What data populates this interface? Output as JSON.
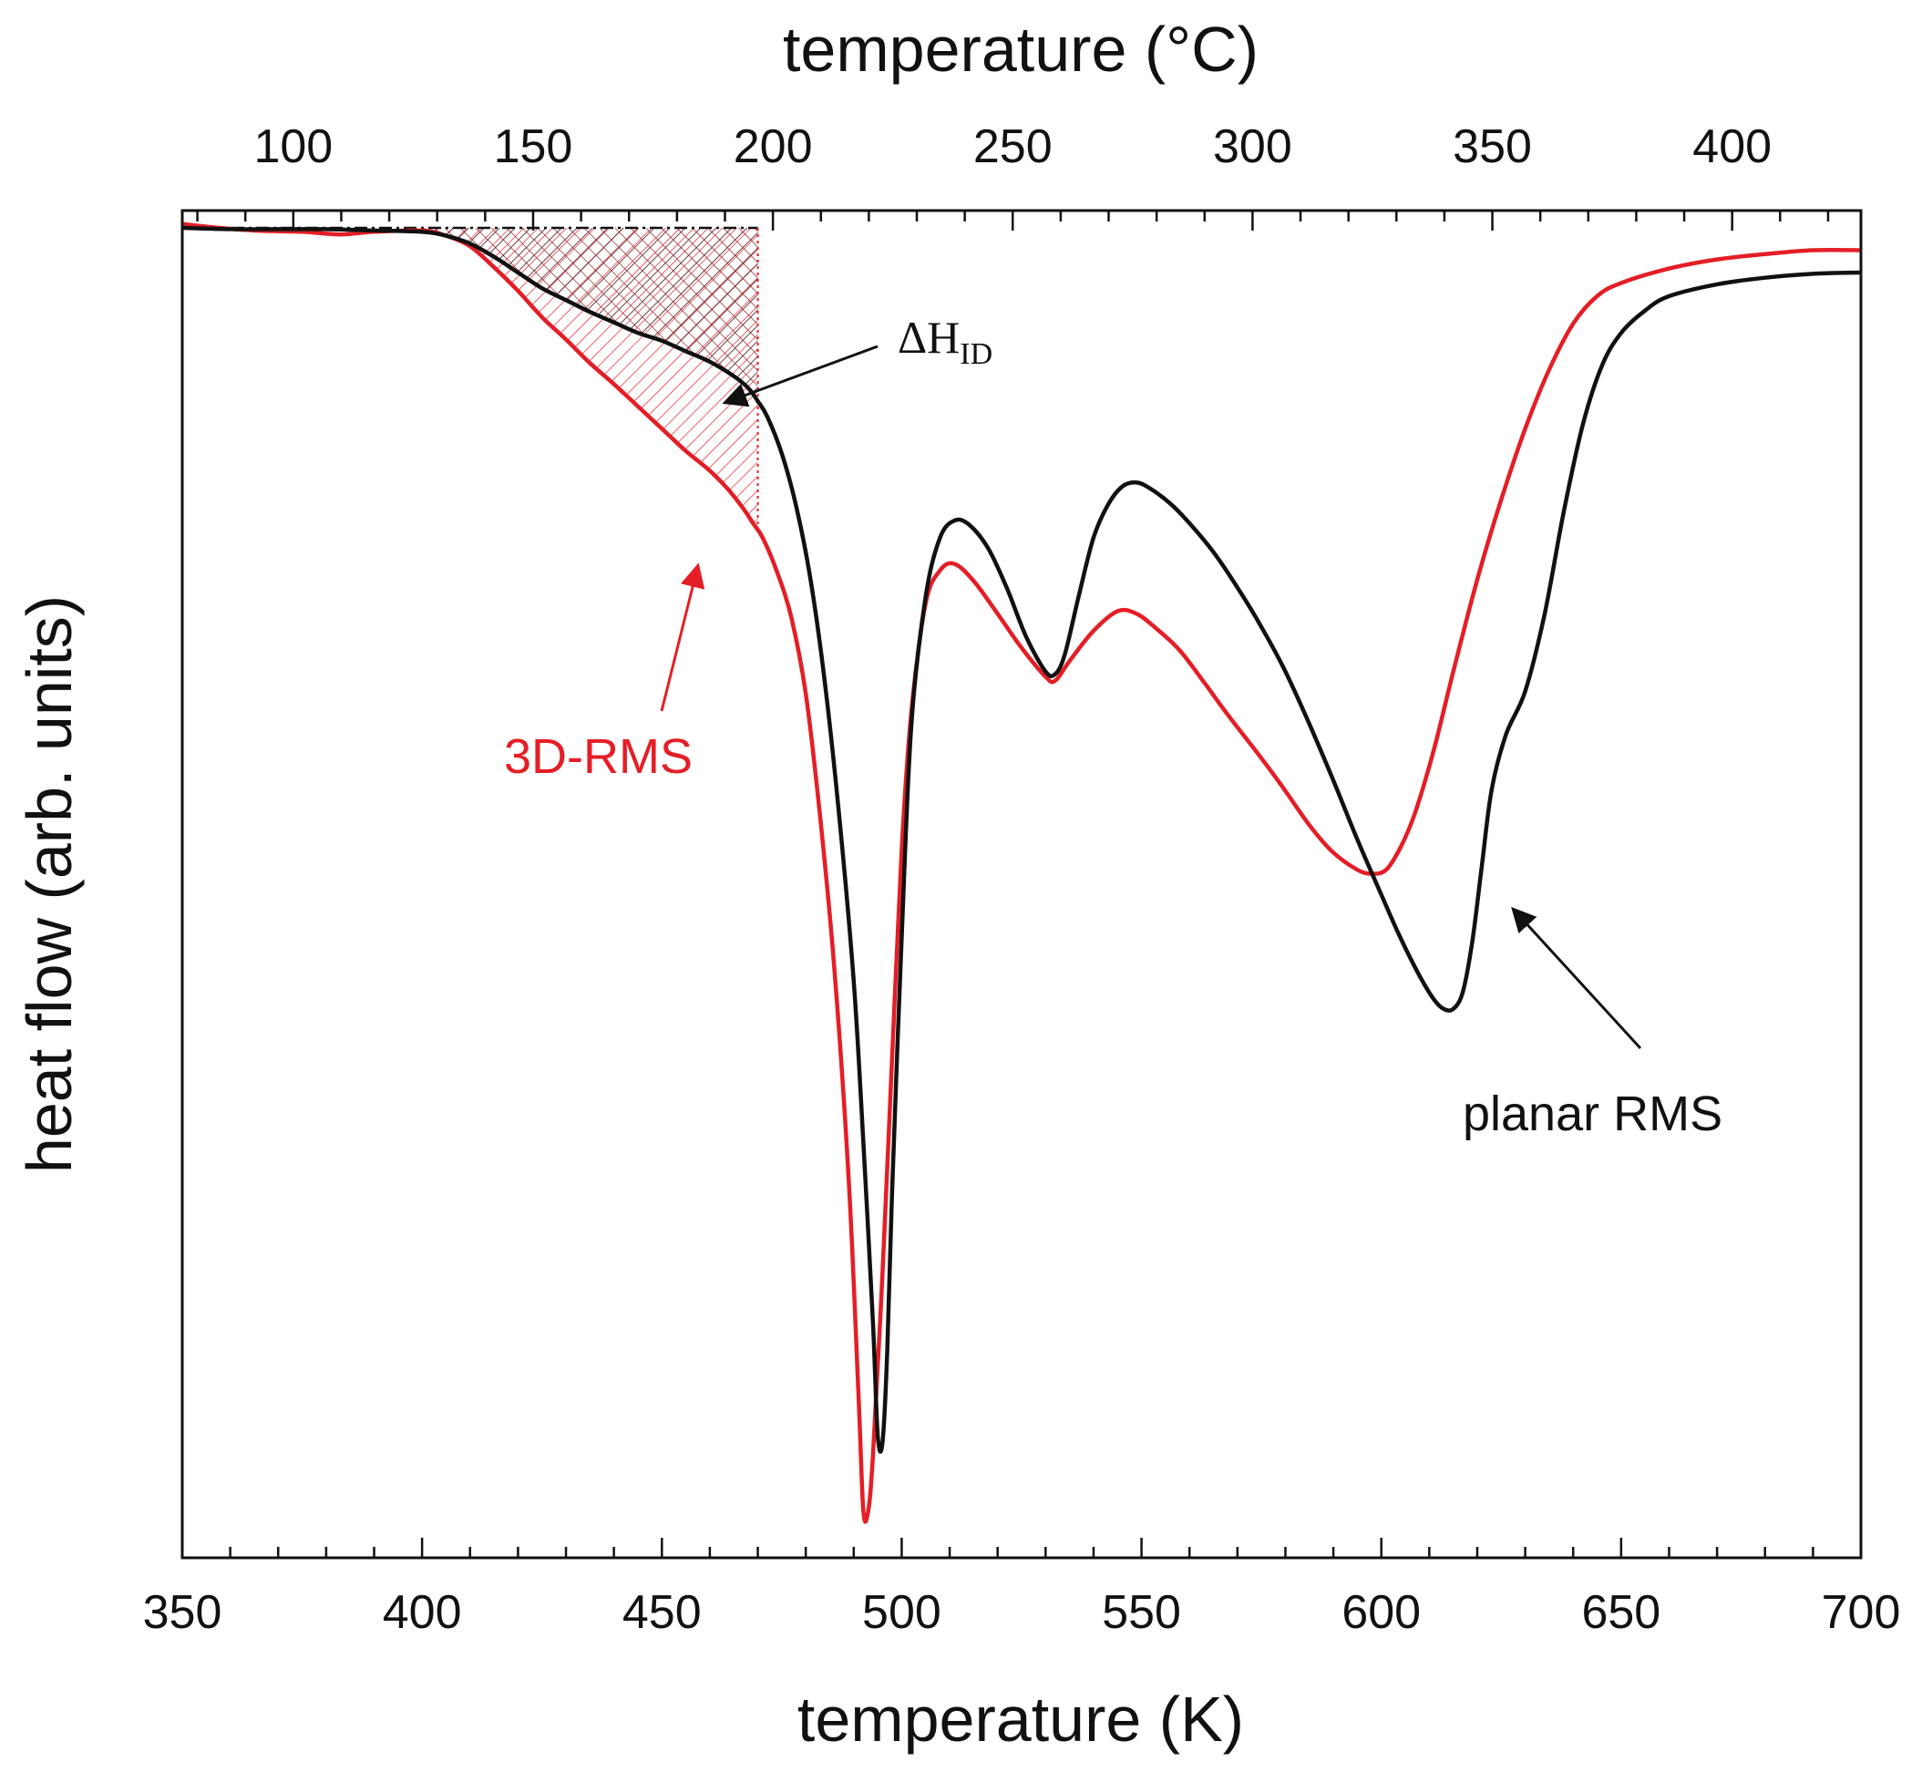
{
  "chart_data": {
    "type": "line",
    "title": "",
    "xlabel": "temperature (K)",
    "top_xlabel": "temperature (°C)",
    "ylabel": "heat flow (arb. units)",
    "xlim": [
      350,
      700
    ],
    "ylim": [
      0,
      100
    ],
    "x_ticks": [
      350,
      400,
      450,
      500,
      550,
      600,
      650,
      700
    ],
    "x_minor_step": 10,
    "top_ticks": [
      100,
      150,
      200,
      250,
      300,
      350,
      400
    ],
    "top_offset_K": 273.15,
    "grid": false,
    "colors": {
      "black_series": "#111111",
      "red_series": "#e41e26",
      "axis": "#111111"
    },
    "series": [
      {
        "name": "planar RMS",
        "color": "#111111",
        "points": [
          [
            350,
            100
          ],
          [
            360,
            99.9
          ],
          [
            370,
            99.9
          ],
          [
            380,
            99.9
          ],
          [
            390,
            99.8
          ],
          [
            400,
            99.7
          ],
          [
            405,
            99.4
          ],
          [
            410,
            98.8
          ],
          [
            415,
            97.8
          ],
          [
            420,
            96.6
          ],
          [
            425,
            95.4
          ],
          [
            430,
            94.5
          ],
          [
            435,
            93.6
          ],
          [
            440,
            92.8
          ],
          [
            445,
            92.0
          ],
          [
            450,
            91.4
          ],
          [
            455,
            90.6
          ],
          [
            460,
            89.8
          ],
          [
            465,
            88.7
          ],
          [
            468,
            87.8
          ],
          [
            470,
            86.8
          ],
          [
            472,
            85.6
          ],
          [
            475,
            82.8
          ],
          [
            478,
            78.8
          ],
          [
            481,
            73.2
          ],
          [
            484,
            65.3
          ],
          [
            487,
            55.1
          ],
          [
            490,
            42.6
          ],
          [
            492,
            30.4
          ],
          [
            494,
            16.6
          ],
          [
            495,
            8.0
          ],
          [
            496,
            7.5
          ],
          [
            497,
            14.5
          ],
          [
            498,
            26.6
          ],
          [
            500,
            45.9
          ],
          [
            502,
            62.1
          ],
          [
            505,
            71.9
          ],
          [
            508,
            76.4
          ],
          [
            511,
            77.7
          ],
          [
            514,
            77.4
          ],
          [
            518,
            75.6
          ],
          [
            522,
            72.5
          ],
          [
            526,
            68.8
          ],
          [
            530,
            66.2
          ],
          [
            532,
            66.0
          ],
          [
            534,
            67.5
          ],
          [
            537,
            72.1
          ],
          [
            540,
            76.4
          ],
          [
            543,
            78.9
          ],
          [
            546,
            80.3
          ],
          [
            549,
            80.6
          ],
          [
            552,
            80.1
          ],
          [
            556,
            79.0
          ],
          [
            560,
            77.5
          ],
          [
            565,
            75.3
          ],
          [
            570,
            72.6
          ],
          [
            575,
            69.6
          ],
          [
            580,
            66.2
          ],
          [
            585,
            62.2
          ],
          [
            590,
            57.9
          ],
          [
            595,
            53.4
          ],
          [
            600,
            49.2
          ],
          [
            604,
            45.9
          ],
          [
            608,
            43.0
          ],
          [
            611,
            41.2
          ],
          [
            613,
            40.5
          ],
          [
            615,
            40.5
          ],
          [
            617,
            41.8
          ],
          [
            619,
            45.7
          ],
          [
            621,
            51.5
          ],
          [
            623,
            57.2
          ],
          [
            626,
            61.4
          ],
          [
            630,
            64.7
          ],
          [
            634,
            70.5
          ],
          [
            638,
            78.3
          ],
          [
            642,
            85.0
          ],
          [
            646,
            89.5
          ],
          [
            650,
            92.0
          ],
          [
            655,
            93.7
          ],
          [
            660,
            94.8
          ],
          [
            670,
            95.7
          ],
          [
            680,
            96.2
          ],
          [
            690,
            96.5
          ],
          [
            700,
            96.6
          ]
        ]
      },
      {
        "name": "3D-RMS",
        "color": "#e41e26",
        "points": [
          [
            350,
            100.3
          ],
          [
            355,
            100.1
          ],
          [
            365,
            99.8
          ],
          [
            375,
            99.7
          ],
          [
            383,
            99.5
          ],
          [
            390,
            99.7
          ],
          [
            400,
            99.8
          ],
          [
            405,
            99.4
          ],
          [
            410,
            98.6
          ],
          [
            415,
            97.0
          ],
          [
            420,
            95.2
          ],
          [
            425,
            93.2
          ],
          [
            430,
            91.5
          ],
          [
            435,
            89.7
          ],
          [
            440,
            88.1
          ],
          [
            445,
            86.4
          ],
          [
            450,
            84.7
          ],
          [
            455,
            83.0
          ],
          [
            460,
            81.5
          ],
          [
            464,
            80.0
          ],
          [
            467,
            78.6
          ],
          [
            469,
            77.5
          ],
          [
            471,
            76.4
          ],
          [
            474,
            73.8
          ],
          [
            477,
            70.3
          ],
          [
            480,
            64.5
          ],
          [
            483,
            55.1
          ],
          [
            486,
            43.4
          ],
          [
            489,
            27.2
          ],
          [
            491,
            11.0
          ],
          [
            492,
            2.3
          ],
          [
            493,
            2.2
          ],
          [
            494,
            6.5
          ],
          [
            496,
            20.4
          ],
          [
            498,
            36.8
          ],
          [
            500,
            52.6
          ],
          [
            502,
            63.1
          ],
          [
            505,
            71.4
          ],
          [
            508,
            73.9
          ],
          [
            511,
            74.4
          ],
          [
            515,
            73.1
          ],
          [
            520,
            70.6
          ],
          [
            525,
            68.0
          ],
          [
            530,
            65.8
          ],
          [
            532,
            65.5
          ],
          [
            535,
            67.0
          ],
          [
            540,
            69.3
          ],
          [
            545,
            70.8
          ],
          [
            549,
            70.6
          ],
          [
            553,
            69.5
          ],
          [
            558,
            67.8
          ],
          [
            563,
            65.4
          ],
          [
            568,
            62.9
          ],
          [
            575,
            59.6
          ],
          [
            580,
            57.1
          ],
          [
            585,
            54.5
          ],
          [
            590,
            52.4
          ],
          [
            595,
            51.1
          ],
          [
            598,
            50.8
          ],
          [
            601,
            51.1
          ],
          [
            604,
            52.8
          ],
          [
            607,
            55.4
          ],
          [
            611,
            60.3
          ],
          [
            615,
            66.2
          ],
          [
            620,
            73.2
          ],
          [
            625,
            79.3
          ],
          [
            630,
            84.7
          ],
          [
            635,
            89.2
          ],
          [
            640,
            92.7
          ],
          [
            645,
            94.8
          ],
          [
            650,
            95.8
          ],
          [
            660,
            96.9
          ],
          [
            670,
            97.6
          ],
          [
            680,
            98.0
          ],
          [
            690,
            98.3
          ],
          [
            700,
            98.3
          ]
        ]
      }
    ],
    "baseline": {
      "style": "dash-dot",
      "from_K": 350,
      "to_K": 470,
      "value": 100
    },
    "shaded_region": {
      "from_K": 400,
      "to_K": 470,
      "pattern": "hatched"
    },
    "annotations": {
      "delta_h": {
        "base": "ΔH",
        "sub": "ID",
        "target": [
          462,
          94.5
        ]
      },
      "label_3d": {
        "text": "3D-RMS",
        "target": [
          458,
          81.0
        ]
      },
      "label_planar": {
        "text": "planar RMS",
        "target": [
          623,
          53.0
        ]
      }
    }
  }
}
